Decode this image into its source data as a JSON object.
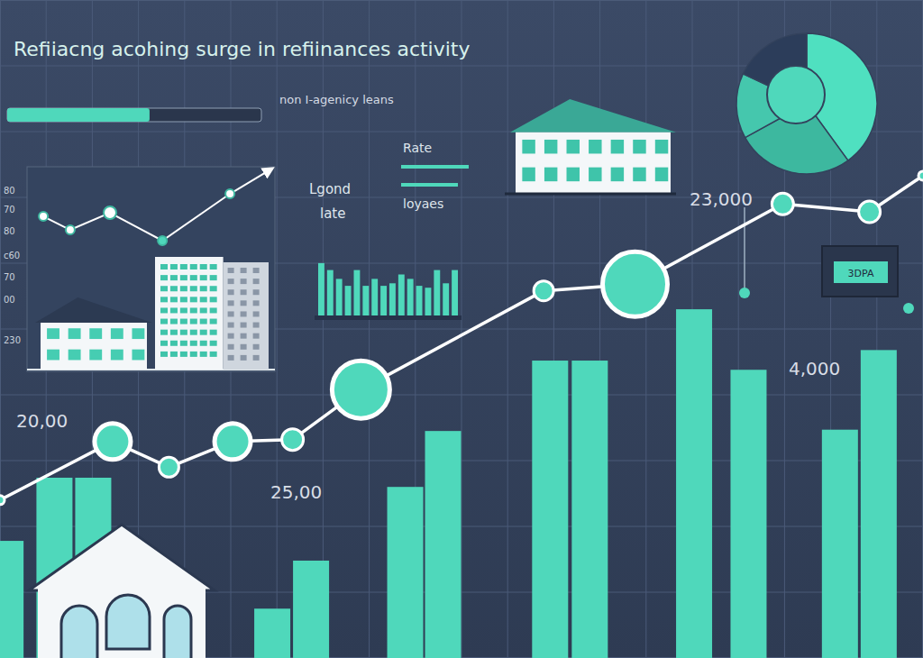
{
  "chart_data": [
    {
      "type": "bar",
      "title": "Refiiacng acohing surge in refiinances activity",
      "subtitle": "non I-agenicy leans",
      "x": [
        0.6,
        5.9,
        10.1,
        29.5,
        33.7,
        43.9,
        48,
        59.6,
        63.9,
        75.2,
        81.1,
        91,
        95.2
      ],
      "values": [
        17.8,
        27.4,
        27.4,
        7.5,
        14.8,
        26,
        34.5,
        45.2,
        45.2,
        53,
        43.8,
        34.7,
        46.8
      ],
      "color": "#4fd8bb",
      "xlim": [
        0,
        100
      ],
      "ylim": [
        0,
        100
      ],
      "xticks": [
        0,
        5,
        10,
        15,
        20,
        25,
        30,
        35,
        40,
        45,
        50,
        55,
        60,
        65,
        70,
        75,
        80,
        85,
        90,
        95,
        100
      ],
      "yticks": [
        0,
        10,
        20,
        30,
        40,
        50,
        60,
        70,
        80,
        90,
        100
      ],
      "grid": true,
      "tick_labels": false,
      "annotations": [
        "Rate",
        "Lgond",
        "late",
        "loyaes",
        "3DPA"
      ],
      "progress": 56,
      "progress_range": [
        0,
        100
      ]
    },
    {
      "type": "line",
      "x": [
        0,
        12.2,
        18.3,
        25.2,
        31.7,
        39.1,
        58.9,
        68.8,
        84.8,
        94.2,
        100
      ],
      "values": [
        24,
        32.9,
        29,
        32.9,
        33.2,
        40.8,
        55.8,
        56.8,
        69,
        67.8,
        73.3
      ],
      "color": "#ffffff",
      "marker": "circle",
      "xlim": [
        0,
        100
      ],
      "ylim": [
        0,
        100
      ],
      "tick_labels": false,
      "annotations": [
        "20,00",
        "25,00",
        "23,000",
        "4,000"
      ]
    },
    {
      "type": "line",
      "x": [
        1.2,
        12.9,
        30.2,
        53,
        82.4,
        100
      ],
      "values": [
        47.6,
        33.3,
        51.4,
        21.9,
        71.4,
        97
      ],
      "color": "#ffffff",
      "marker": "circle",
      "xlim": [
        0,
        100
      ],
      "ylim": [
        0,
        100
      ],
      "tick_labels": false,
      "annotations": [
        "80",
        "70",
        "80",
        "c60",
        "70",
        "00",
        "230"
      ]
    },
    {
      "type": "bar",
      "categories": [
        null,
        null,
        null,
        null,
        null,
        null,
        null,
        null,
        null,
        null,
        null,
        null,
        null,
        null,
        null,
        null
      ],
      "values": [
        83,
        72,
        58,
        47,
        72,
        47,
        58,
        47,
        51,
        65,
        58,
        47,
        44,
        72,
        51,
        72
      ],
      "color": "#4fd8bb",
      "ylim": [
        0,
        100
      ],
      "tick_labels": false
    },
    {
      "type": "pie",
      "values": [
        40,
        27,
        15,
        18
      ],
      "colors": [
        "#4fe0c0",
        "#3db89f",
        "#45c7ad",
        "#2c3d5a"
      ]
    }
  ]
}
